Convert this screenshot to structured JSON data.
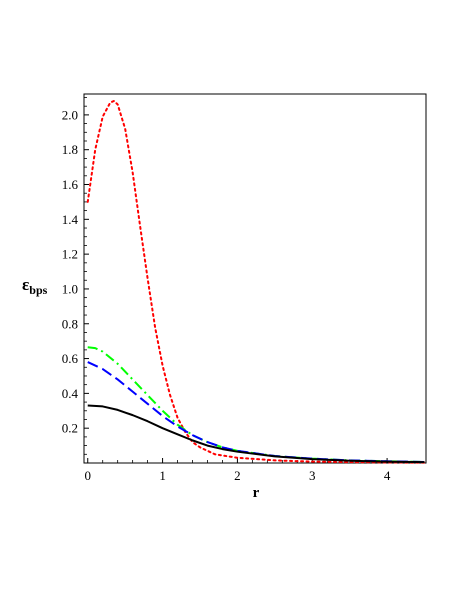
{
  "chart_data": {
    "type": "line",
    "title": "",
    "xlabel": "r",
    "ylabel": {
      "main": "ε",
      "sub": "bps"
    },
    "xlim": [
      -0.05,
      4.52
    ],
    "ylim": [
      0.0,
      2.12
    ],
    "xticks": [
      0,
      1,
      2,
      3,
      4
    ],
    "xtick_labels": [
      "0",
      "1",
      "2",
      "3",
      "4"
    ],
    "yticks": [
      0.2,
      0.4,
      0.6,
      0.8,
      1.0,
      1.2,
      1.4,
      1.6,
      1.8,
      2.0
    ],
    "ytick_labels": [
      "0.2",
      "0.4",
      "0.6",
      "0.8",
      "1.0",
      "1.2",
      "1.4",
      "1.6",
      "1.8",
      "2.0"
    ],
    "grid": false,
    "legend": "none",
    "series": [
      {
        "color": "#ff0000",
        "style": "dotted",
        "x": [
          0,
          0.1,
          0.2,
          0.3,
          0.35,
          0.4,
          0.5,
          0.6,
          0.7,
          0.8,
          0.9,
          1.0,
          1.1,
          1.2,
          1.3,
          1.4,
          1.5,
          1.7,
          2.0,
          2.5,
          3.0,
          3.5,
          4.0,
          4.5
        ],
        "y": [
          1.5,
          1.8,
          1.99,
          2.07,
          2.08,
          2.06,
          1.92,
          1.67,
          1.36,
          1.06,
          0.78,
          0.56,
          0.39,
          0.26,
          0.18,
          0.12,
          0.09,
          0.05,
          0.03,
          0.015,
          0.008,
          0.005,
          0.003,
          0.002
        ]
      },
      {
        "color": "#00ff00",
        "style": "dashdot",
        "x": [
          0,
          0.1,
          0.2,
          0.4,
          0.6,
          0.8,
          1.0,
          1.2,
          1.4,
          1.6,
          1.8,
          2.0,
          2.5,
          3.0,
          3.5,
          4.0,
          4.5
        ],
        "y": [
          0.665,
          0.66,
          0.64,
          0.57,
          0.48,
          0.39,
          0.3,
          0.22,
          0.16,
          0.12,
          0.09,
          0.07,
          0.04,
          0.025,
          0.015,
          0.01,
          0.006
        ]
      },
      {
        "color": "#0000ff",
        "style": "dashed",
        "x": [
          0,
          0.2,
          0.4,
          0.6,
          0.8,
          1.0,
          1.2,
          1.4,
          1.6,
          1.8,
          2.0,
          2.5,
          3.0,
          3.5,
          4.0,
          4.5
        ],
        "y": [
          0.58,
          0.54,
          0.48,
          0.41,
          0.34,
          0.27,
          0.21,
          0.16,
          0.12,
          0.09,
          0.07,
          0.04,
          0.025,
          0.015,
          0.01,
          0.006
        ]
      },
      {
        "color": "#000000",
        "style": "solid",
        "x": [
          0,
          0.2,
          0.4,
          0.6,
          0.8,
          1.0,
          1.2,
          1.4,
          1.6,
          1.8,
          2.0,
          2.5,
          3.0,
          3.5,
          4.0,
          4.5
        ],
        "y": [
          0.33,
          0.325,
          0.305,
          0.275,
          0.24,
          0.2,
          0.165,
          0.13,
          0.1,
          0.08,
          0.065,
          0.038,
          0.022,
          0.013,
          0.008,
          0.005
        ]
      }
    ]
  }
}
